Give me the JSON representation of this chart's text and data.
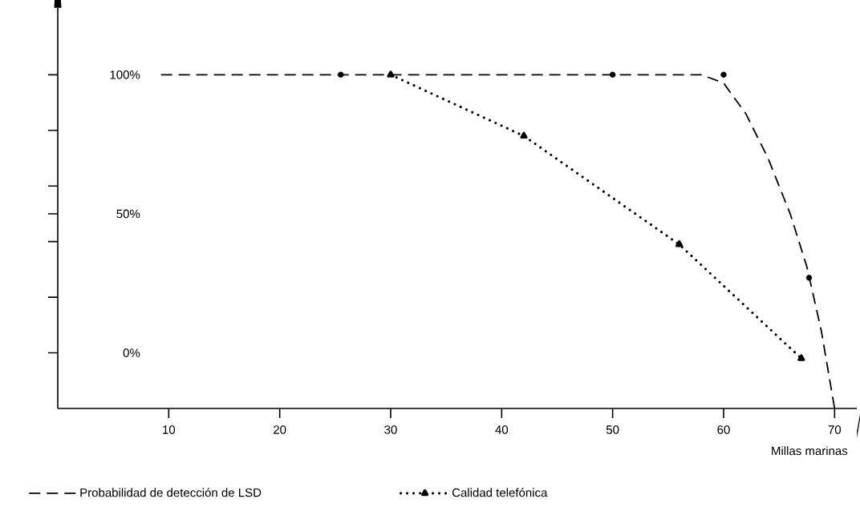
{
  "chart_data": {
    "type": "line",
    "xlabel": "Millas marinas",
    "xlim": [
      0,
      72
    ],
    "ylim": [
      -20,
      124
    ],
    "xticks": [
      10,
      20,
      30,
      40,
      50,
      60,
      70
    ],
    "yticks": [
      {
        "value": 0,
        "label": "0%"
      },
      {
        "value": 20,
        "label": null
      },
      {
        "value": 40,
        "label": null
      },
      {
        "value": 50,
        "label": "50%"
      },
      {
        "value": 60,
        "label": null
      },
      {
        "value": 80,
        "label": null
      },
      {
        "value": 100,
        "label": "100%"
      }
    ],
    "legend": "bottom",
    "series": [
      {
        "name": "Probabilidad de detección de LSD",
        "color": "#000000",
        "line_style": "dashed",
        "marker": "none",
        "x": [
          9.3,
          58,
          60,
          62,
          64,
          66,
          67.5,
          68.8,
          70
        ],
        "values": [
          100,
          100,
          97,
          86,
          70,
          50,
          31,
          8,
          -20
        ]
      },
      {
        "type": "scatter",
        "color": "#000000",
        "marker": "circle",
        "x": [
          25.5,
          50,
          60,
          67.7
        ],
        "values": [
          100,
          100,
          100,
          27
        ]
      },
      {
        "name": "Calidad telefónica",
        "color": "#000000",
        "line_style": "dotted",
        "marker": "triangle",
        "x": [
          30,
          42,
          56,
          67
        ],
        "values": [
          100,
          78,
          39,
          -2
        ]
      }
    ]
  }
}
